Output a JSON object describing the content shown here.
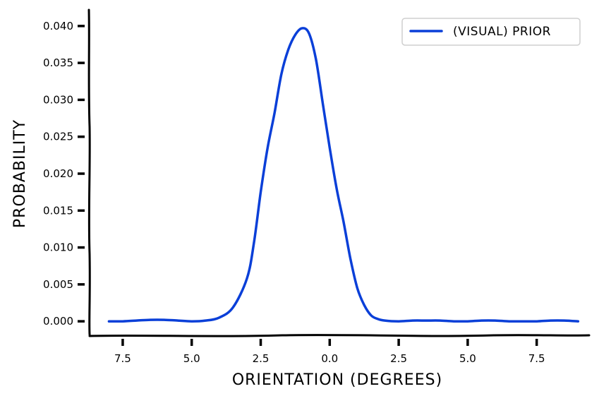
{
  "chart_data": {
    "type": "line",
    "xlabel": "ORIENTATION (DEGREES)",
    "ylabel": "PROBABILITY",
    "xlim": [
      -8.7,
      9.4
    ],
    "ylim": [
      -0.0018,
      0.0418
    ],
    "x_ticks": [
      -7.5,
      -5.0,
      -2.5,
      0.0,
      2.5,
      5.0,
      7.5
    ],
    "x_tick_labels": [
      "7.5",
      "5.0",
      "2.5",
      "0.0",
      "2.5",
      "5.0",
      "7.5"
    ],
    "y_ticks": [
      0.0,
      0.005,
      0.01,
      0.015,
      0.02,
      0.025,
      0.03,
      0.035,
      0.04
    ],
    "y_tick_labels": [
      "0.000",
      "0.005",
      "0.010",
      "0.015",
      "0.020",
      "0.025",
      "0.030",
      "0.035",
      "0.040"
    ],
    "grid": false,
    "legend_position": "top-right",
    "series": [
      {
        "name": "(VISUAL) PRIOR",
        "color": "#0a3fd8",
        "x": [
          -8.0,
          -7.5,
          -7.0,
          -6.5,
          -6.0,
          -5.5,
          -5.0,
          -4.5,
          -4.0,
          -3.5,
          -3.0,
          -2.75,
          -2.5,
          -2.25,
          -2.0,
          -1.75,
          -1.5,
          -1.25,
          -1.0,
          -0.75,
          -0.5,
          -0.25,
          0.0,
          0.25,
          0.5,
          0.75,
          1.0,
          1.25,
          1.5,
          1.75,
          2.0,
          2.5,
          3.0,
          3.5,
          4.0,
          4.5,
          5.0,
          5.5,
          6.0,
          6.5,
          7.0,
          7.5,
          8.0,
          8.5,
          9.0
        ],
        "y": [
          0.0,
          0.0,
          0.0001,
          0.0002,
          0.0002,
          0.0001,
          0.0,
          0.0001,
          0.0005,
          0.0019,
          0.0058,
          0.0105,
          0.0175,
          0.0235,
          0.0282,
          0.0335,
          0.0368,
          0.0388,
          0.0397,
          0.039,
          0.0355,
          0.0295,
          0.0235,
          0.018,
          0.0135,
          0.0085,
          0.0045,
          0.0022,
          0.0008,
          0.0003,
          0.0001,
          0.0,
          0.0001,
          0.0001,
          0.0001,
          0.0,
          0.0,
          0.0001,
          0.0001,
          0.0,
          0.0,
          0.0,
          0.0001,
          0.0001,
          0.0
        ]
      }
    ]
  }
}
